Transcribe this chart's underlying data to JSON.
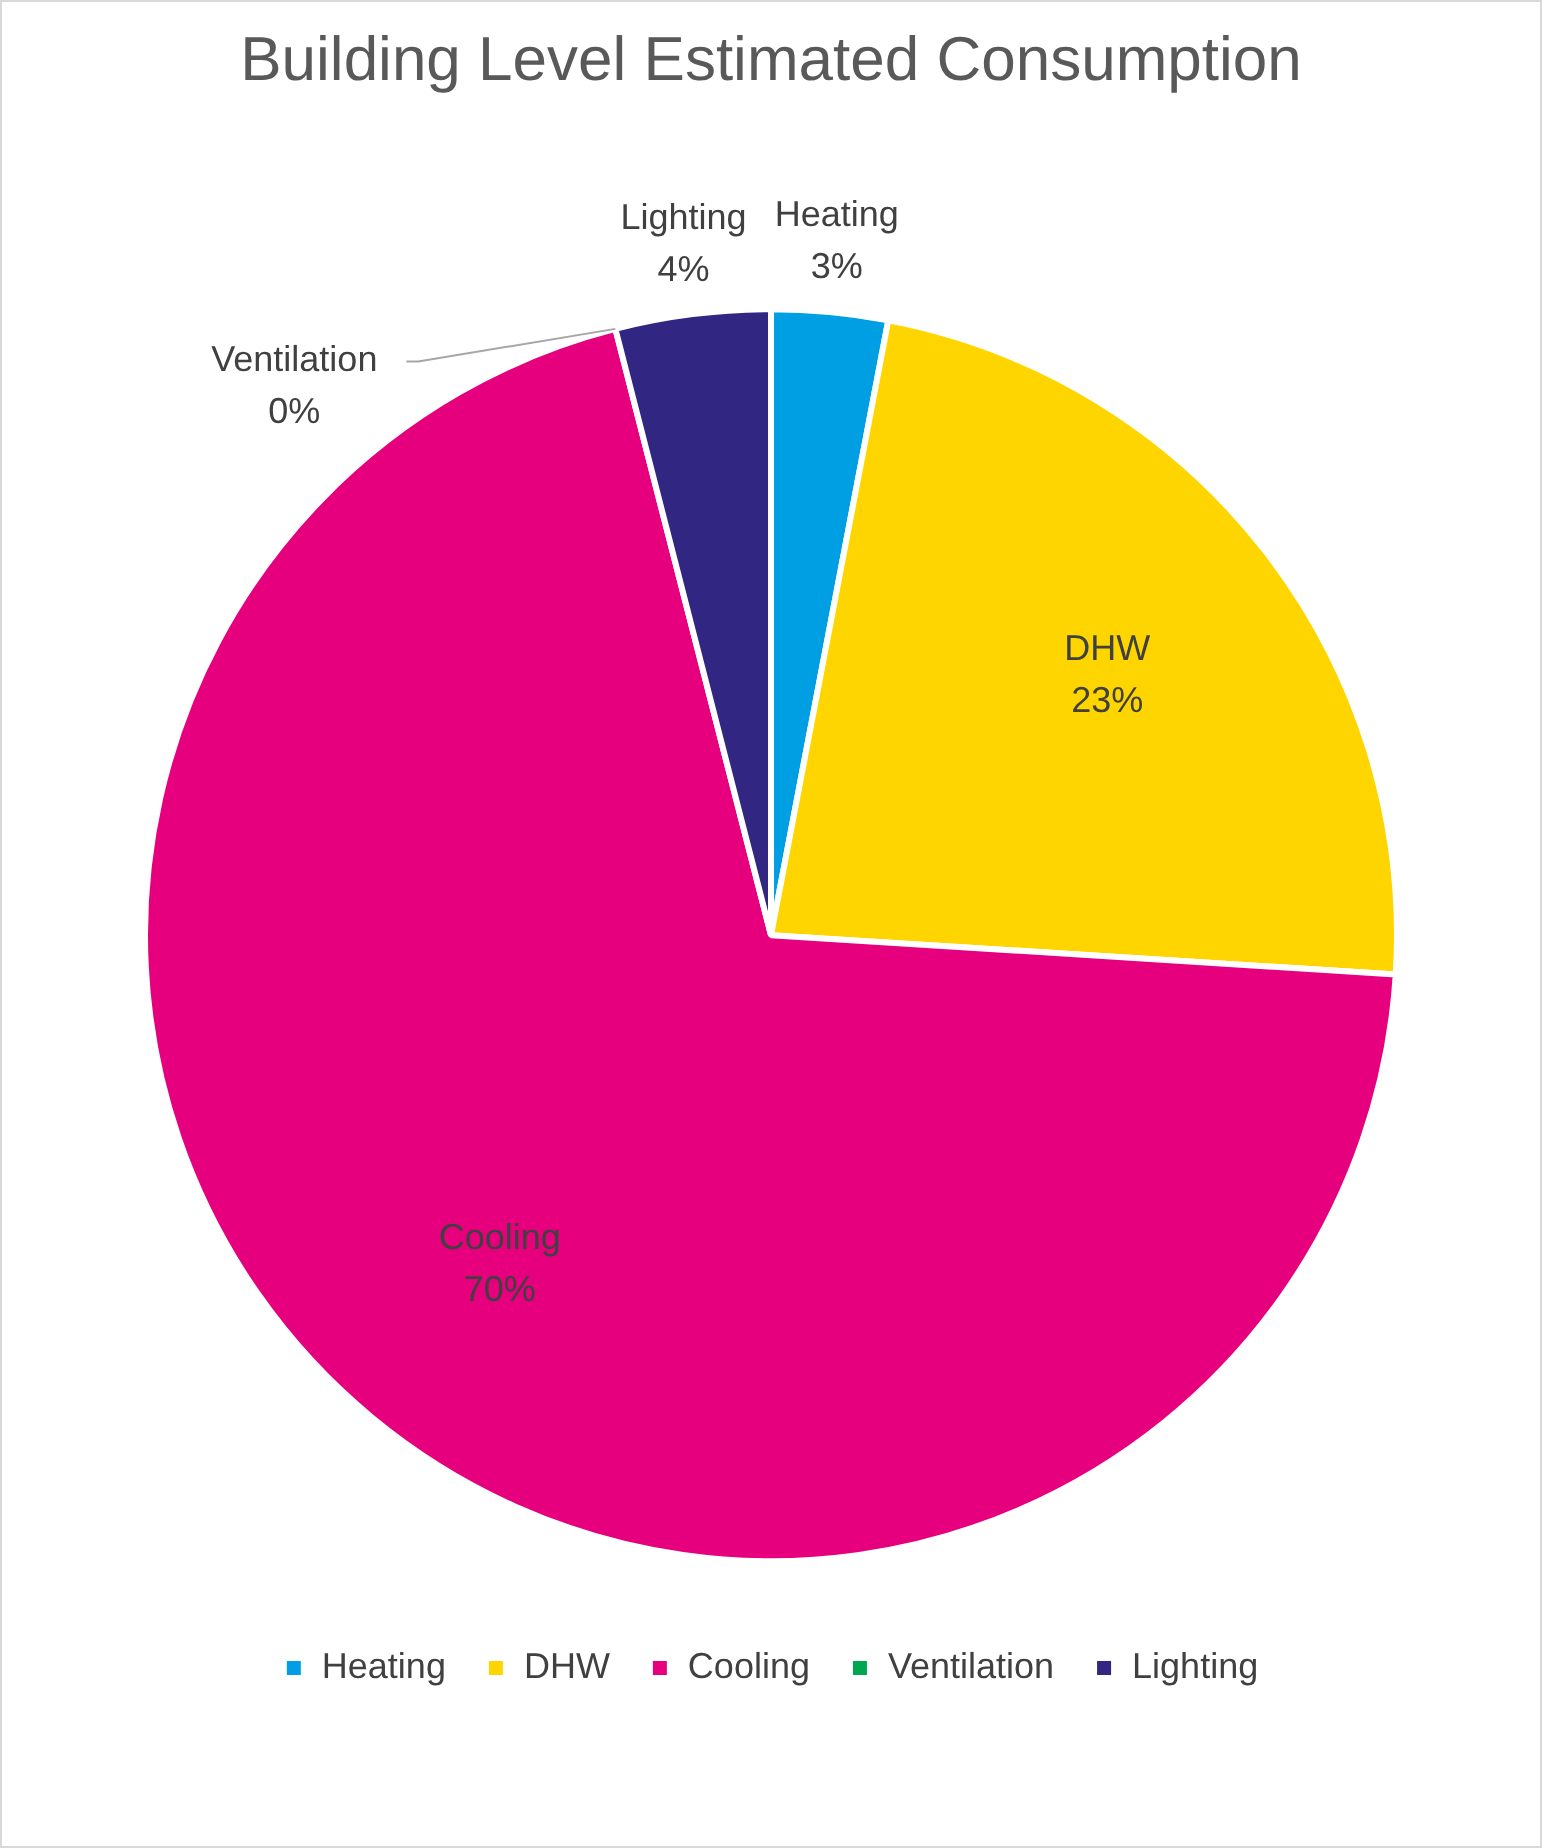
{
  "chart_data": {
    "type": "pie",
    "title": "Building Level Estimated Consumption",
    "categories": [
      "Heating",
      "DHW",
      "Cooling",
      "Ventilation",
      "Lighting"
    ],
    "values": [
      3,
      23,
      70,
      0,
      4
    ],
    "colors": [
      "#009fe3",
      "#ffd500",
      "#e6007e",
      "#00a651",
      "#312783"
    ],
    "value_labels": [
      "3%",
      "23%",
      "70%",
      "0%",
      "4%"
    ],
    "legend": "bottom"
  }
}
